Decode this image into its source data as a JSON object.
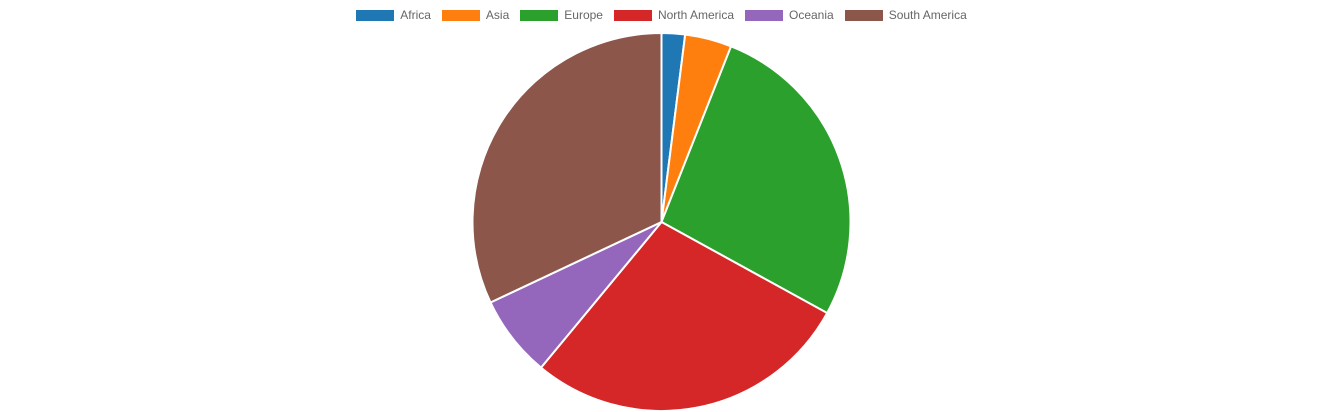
{
  "chart_data": {
    "type": "pie",
    "title": "",
    "legend_position": "top",
    "categories": [
      "Africa",
      "Asia",
      "Europe",
      "North America",
      "Oceania",
      "South America"
    ],
    "values": [
      2,
      4,
      27,
      28,
      7,
      32
    ],
    "colors": [
      "#1f77b4",
      "#ff7f0e",
      "#2ca02c",
      "#d62728",
      "#9467bd",
      "#8c564b"
    ]
  }
}
